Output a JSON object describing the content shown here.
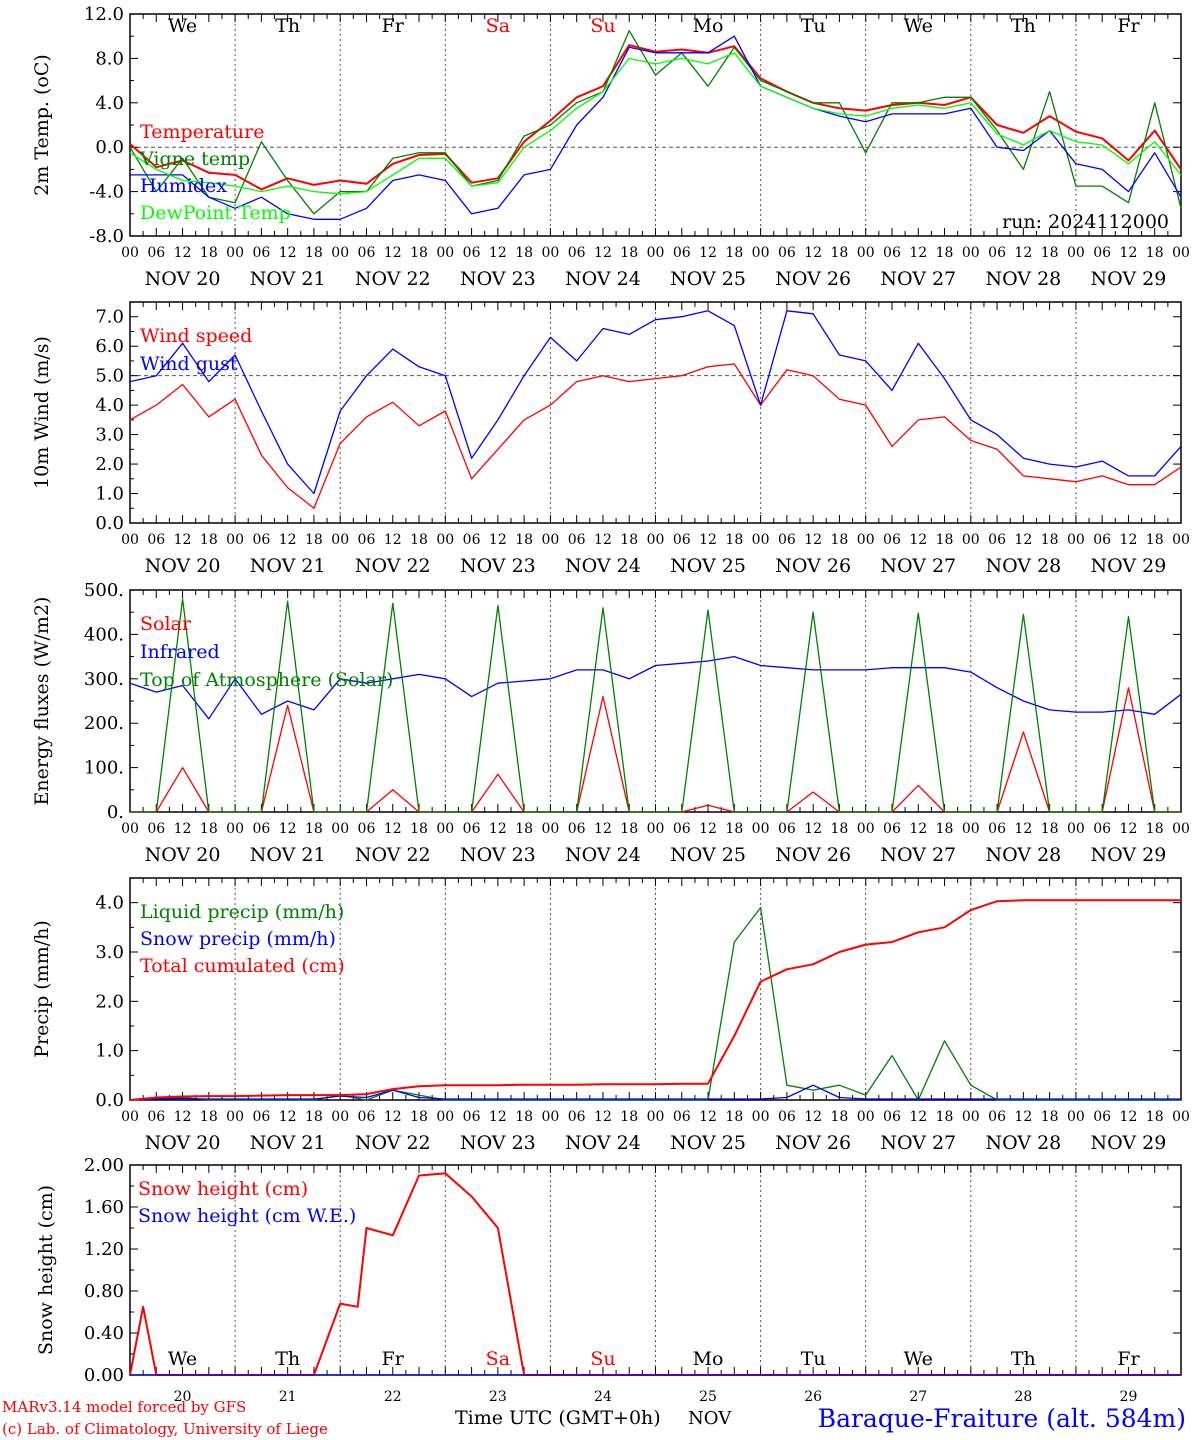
{
  "run_label": "run: 2024112000",
  "footer": {
    "credit1": "MARv3.14 model forced by GFS",
    "credit2": "(c) Lab. of Climatology, University of Liege",
    "xlabel": "Time UTC (GMT+0h)",
    "month": "NOV",
    "station": "Baraque-Fraiture (alt. 584m)"
  },
  "colors": {
    "red": "#ff0000",
    "green": "#008000",
    "blue": "#0000ff",
    "lightgreen": "#00ff00",
    "grid": "#666666"
  },
  "days": {
    "weekday_labels": [
      "We",
      "Th",
      "Fr",
      "Sa",
      "Su",
      "Mo",
      "Tu",
      "We",
      "Th",
      "Fr"
    ],
    "weekend_flags": [
      false,
      false,
      false,
      true,
      true,
      false,
      false,
      false,
      false,
      false
    ],
    "date_labels": [
      "NOV 20",
      "NOV 21",
      "NOV 22",
      "NOV 23",
      "NOV 24",
      "NOV 25",
      "NOV 26",
      "NOV 27",
      "NOV 28",
      "NOV 29"
    ],
    "day_numbers": [
      "20",
      "21",
      "22",
      "23",
      "24",
      "25",
      "26",
      "27",
      "28",
      "29"
    ],
    "hour_ticks": [
      "00",
      "06",
      "12",
      "18"
    ],
    "final_tick": "00"
  },
  "chart_data": [
    {
      "type": "line",
      "ylabel": "2m Temp. (oC)",
      "ylim": [
        -8,
        12
      ],
      "yticks": [
        "12.0",
        "8.0",
        "4.0",
        "0.0",
        "-4.0",
        "-8.0"
      ],
      "reference_line": 0,
      "x": [
        0,
        6,
        12,
        18,
        24,
        30,
        36,
        42,
        48,
        54,
        60,
        66,
        72,
        78,
        84,
        90,
        96,
        102,
        108,
        114,
        120,
        126,
        132,
        138,
        144,
        150,
        156,
        162,
        168,
        174,
        180,
        186,
        192,
        198,
        204,
        210,
        216,
        222,
        228,
        234,
        240
      ],
      "series": [
        {
          "name": "Temperature",
          "color": "#ff0000",
          "values": [
            0.3,
            -1.8,
            -1.2,
            -2.3,
            -2.5,
            -3.8,
            -2.8,
            -3.4,
            -3.0,
            -3.3,
            -1.5,
            -0.7,
            -0.6,
            -3.2,
            -2.8,
            0.5,
            2.4,
            4.5,
            5.5,
            9.2,
            8.6,
            8.8,
            8.5,
            9.1,
            6.2,
            5.0,
            4.0,
            3.5,
            3.3,
            3.8,
            4.0,
            3.8,
            4.5,
            2.0,
            1.3,
            2.8,
            1.4,
            0.8,
            -1.2,
            1.5,
            -2.0
          ]
        },
        {
          "name": "Vigne temp",
          "color": "#008000",
          "values": [
            0.0,
            -4.0,
            -1.0,
            -4.5,
            -5.0,
            0.5,
            -3.0,
            -6.0,
            -4.0,
            -4.0,
            -1.0,
            -0.5,
            -0.5,
            -3.5,
            -3.0,
            1.0,
            2.0,
            4.0,
            5.0,
            10.5,
            6.5,
            8.5,
            5.5,
            9.0,
            6.0,
            5.0,
            4.0,
            4.0,
            -0.5,
            4.0,
            4.0,
            4.5,
            4.5,
            1.5,
            -2.0,
            5.0,
            -3.5,
            -3.5,
            -5.0,
            4.0,
            -5.5
          ]
        },
        {
          "name": "Humidex",
          "color": "#0000ff",
          "values": [
            -2.5,
            -2.5,
            -2.5,
            -4.5,
            -5.5,
            -4.5,
            -6.0,
            -6.5,
            -6.5,
            -5.5,
            -3.0,
            -2.5,
            -3.0,
            -6.0,
            -5.5,
            -2.5,
            -2.0,
            2.0,
            4.5,
            9.0,
            8.5,
            8.5,
            8.5,
            10.0,
            5.5,
            4.5,
            3.5,
            2.8,
            2.3,
            3.0,
            3.0,
            3.0,
            3.5,
            0.0,
            -0.3,
            1.5,
            -1.5,
            -2.0,
            -4.0,
            -0.5,
            -4.5
          ]
        },
        {
          "name": "DewPoint Temp",
          "color": "#00ff00",
          "values": [
            -0.5,
            -2.0,
            -3.0,
            -3.2,
            -3.5,
            -4.0,
            -3.5,
            -4.0,
            -4.2,
            -4.0,
            -2.5,
            -1.0,
            -1.0,
            -3.5,
            -3.2,
            0.0,
            1.5,
            3.5,
            5.0,
            8.0,
            7.5,
            8.0,
            7.5,
            8.5,
            5.5,
            4.5,
            3.5,
            3.0,
            2.8,
            3.5,
            3.8,
            3.5,
            4.0,
            1.2,
            0.2,
            1.5,
            0.5,
            0.2,
            -1.5,
            0.5,
            -2.5
          ]
        }
      ]
    },
    {
      "type": "line",
      "ylabel": "10m Wind (m/s)",
      "ylim": [
        0,
        7.5
      ],
      "yticks": [
        "7.0",
        "6.0",
        "5.0",
        "4.0",
        "3.0",
        "2.0",
        "1.0",
        "0.0"
      ],
      "reference_line": 5,
      "x": [
        0,
        6,
        12,
        18,
        24,
        30,
        36,
        42,
        48,
        54,
        60,
        66,
        72,
        78,
        84,
        90,
        96,
        102,
        108,
        114,
        120,
        126,
        132,
        138,
        144,
        150,
        156,
        162,
        168,
        174,
        180,
        186,
        192,
        198,
        204,
        210,
        216,
        222,
        228,
        234,
        240
      ],
      "series": [
        {
          "name": "Wind speed",
          "color": "#ff0000",
          "values": [
            3.5,
            4.0,
            4.7,
            3.6,
            4.2,
            2.3,
            1.2,
            0.5,
            2.7,
            3.6,
            4.1,
            3.3,
            3.8,
            1.5,
            2.5,
            3.5,
            4.0,
            4.8,
            5.0,
            4.8,
            4.9,
            5.0,
            5.3,
            5.4,
            4.0,
            5.2,
            5.0,
            4.2,
            4.0,
            2.6,
            3.5,
            3.6,
            2.8,
            2.5,
            1.6,
            1.5,
            1.4,
            1.6,
            1.3,
            1.3,
            1.9
          ]
        },
        {
          "name": "Wind gust",
          "color": "#0000ff",
          "values": [
            4.8,
            5.0,
            6.1,
            4.8,
            5.7,
            3.8,
            2.0,
            1.0,
            3.8,
            5.0,
            5.9,
            5.3,
            5.0,
            2.2,
            3.5,
            5.0,
            6.3,
            5.5,
            6.6,
            6.4,
            6.9,
            7.0,
            7.2,
            6.7,
            4.0,
            7.2,
            7.1,
            5.7,
            5.5,
            4.5,
            6.1,
            4.9,
            3.5,
            3.0,
            2.2,
            2.0,
            1.9,
            2.1,
            1.6,
            1.6,
            2.6
          ]
        }
      ]
    },
    {
      "type": "line",
      "ylabel": "Energy fluxes (W/m2)",
      "ylim": [
        0,
        500
      ],
      "yticks": [
        "500.",
        "400.",
        "300.",
        "200.",
        "100.",
        "0."
      ],
      "x": [
        0,
        6,
        12,
        18,
        24,
        30,
        36,
        42,
        48,
        54,
        60,
        66,
        72,
        78,
        84,
        90,
        96,
        102,
        108,
        114,
        120,
        126,
        132,
        138,
        144,
        150,
        156,
        162,
        168,
        174,
        180,
        186,
        192,
        198,
        204,
        210,
        216,
        222,
        228,
        234,
        240
      ],
      "series": [
        {
          "name": "Solar",
          "color": "#ff0000",
          "values": [
            0,
            0,
            100,
            0,
            0,
            0,
            240,
            0,
            0,
            0,
            50,
            0,
            0,
            0,
            85,
            0,
            0,
            0,
            260,
            0,
            0,
            0,
            15,
            0,
            0,
            0,
            45,
            0,
            0,
            0,
            60,
            0,
            0,
            0,
            180,
            0,
            0,
            0,
            280,
            0,
            0
          ]
        },
        {
          "name": "Infrared",
          "color": "#0000ff",
          "values": [
            290,
            270,
            285,
            210,
            300,
            220,
            250,
            230,
            300,
            290,
            300,
            310,
            300,
            260,
            290,
            295,
            300,
            320,
            320,
            300,
            330,
            335,
            340,
            350,
            330,
            325,
            320,
            320,
            320,
            325,
            325,
            325,
            315,
            280,
            250,
            230,
            225,
            225,
            230,
            220,
            265
          ]
        },
        {
          "name": "Top of Atmosphere (Solar)",
          "color": "#008000",
          "values": [
            0,
            0,
            480,
            0,
            0,
            0,
            475,
            0,
            0,
            0,
            470,
            0,
            0,
            0,
            465,
            0,
            0,
            0,
            460,
            0,
            0,
            0,
            455,
            0,
            0,
            0,
            450,
            0,
            0,
            0,
            448,
            0,
            0,
            0,
            445,
            0,
            0,
            0,
            440,
            0,
            0
          ]
        }
      ]
    },
    {
      "type": "line",
      "ylabel": "Precip (mm/h)",
      "ylim": [
        0,
        4.5
      ],
      "yticks": [
        "4.0",
        "3.0",
        "2.0",
        "1.0",
        "0.0"
      ],
      "x": [
        0,
        6,
        12,
        18,
        24,
        30,
        36,
        42,
        48,
        54,
        60,
        66,
        72,
        78,
        84,
        90,
        96,
        102,
        108,
        114,
        120,
        126,
        132,
        138,
        144,
        150,
        156,
        162,
        168,
        174,
        180,
        186,
        192,
        198,
        204,
        210,
        216,
        222,
        228,
        234,
        240
      ],
      "series": [
        {
          "name": "Liquid precip (mm/h)",
          "color": "#008000",
          "values": [
            0,
            0.03,
            0.05,
            0,
            0,
            0,
            0,
            0,
            0.1,
            0,
            0.2,
            0.1,
            0,
            0,
            0,
            0,
            0,
            0,
            0,
            0,
            0,
            0,
            0,
            3.2,
            3.9,
            0.3,
            0.2,
            0.3,
            0.1,
            0.9,
            0,
            1.2,
            0.3,
            0,
            0,
            0,
            0,
            0,
            0,
            0,
            0
          ]
        },
        {
          "name": "Snow precip (mm/h)",
          "color": "#0000ff",
          "values": [
            0,
            0.02,
            0.03,
            0.02,
            0.02,
            0.02,
            0.02,
            0.02,
            0.08,
            0.05,
            0.2,
            0.05,
            0.02,
            0.02,
            0.02,
            0.02,
            0.02,
            0.02,
            0.02,
            0.02,
            0.02,
            0.02,
            0.02,
            0.02,
            0.02,
            0.05,
            0.3,
            0.05,
            0.02,
            0.02,
            0.02,
            0.02,
            0.02,
            0.02,
            0.02,
            0.02,
            0.02,
            0.02,
            0.02,
            0.02,
            0.02
          ]
        },
        {
          "name": "Total cumulated (cm)",
          "color": "#ff0000",
          "values": [
            0,
            0.05,
            0.07,
            0.08,
            0.08,
            0.09,
            0.1,
            0.1,
            0.1,
            0.12,
            0.22,
            0.28,
            0.3,
            0.3,
            0.3,
            0.31,
            0.31,
            0.31,
            0.32,
            0.32,
            0.32,
            0.33,
            0.33,
            1.3,
            2.4,
            2.65,
            2.75,
            3.0,
            3.15,
            3.2,
            3.4,
            3.5,
            3.85,
            4.03,
            4.05,
            4.05,
            4.05,
            4.05,
            4.05,
            4.05,
            4.05
          ]
        }
      ]
    },
    {
      "type": "line",
      "ylabel": "Snow height (cm)",
      "ylim": [
        0,
        2
      ],
      "yticks": [
        "2.00",
        "1.60",
        "1.20",
        "0.80",
        "0.40",
        "0.00"
      ],
      "x": [
        0,
        3,
        6,
        12,
        18,
        24,
        36,
        42,
        48,
        52,
        54,
        60,
        66,
        72,
        78,
        84,
        90,
        96,
        108,
        120,
        144,
        168,
        192,
        216,
        240
      ],
      "series": [
        {
          "name": "Snow height (cm)",
          "color": "#ff0000",
          "values": [
            0,
            0.65,
            0,
            0,
            0,
            0,
            0,
            0,
            0.68,
            0.65,
            1.4,
            1.33,
            1.9,
            1.92,
            1.7,
            1.4,
            0,
            0,
            0,
            0,
            0,
            0,
            0,
            0,
            0
          ]
        },
        {
          "name": "Snow height (cm W.E.)",
          "color": "#0000ff",
          "values": [
            0,
            0,
            0,
            0,
            0,
            0,
            0,
            0,
            0,
            0,
            0,
            0,
            0,
            0,
            0,
            0,
            0,
            0,
            0,
            0,
            0,
            0,
            0,
            0,
            0
          ]
        }
      ]
    }
  ]
}
